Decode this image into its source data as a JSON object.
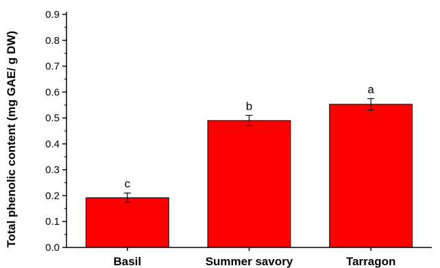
{
  "chart_data": {
    "type": "bar",
    "title": "",
    "xlabel": "",
    "ylabel": "Total phenolic content (mg GAE/ g DW)",
    "ylim": [
      0,
      0.9
    ],
    "y_ticks": [
      0.0,
      0.1,
      0.2,
      0.3,
      0.4,
      0.5,
      0.6,
      0.7,
      0.8,
      0.9
    ],
    "y_tick_labels": [
      "0.0",
      "0.1",
      "0.2",
      "0.3",
      "0.4",
      "0.5",
      "0.6",
      "0.7",
      "0.8",
      "0.9"
    ],
    "grid": false,
    "categories": [
      "Basil",
      "Summer savory",
      "Tarragon"
    ],
    "values": [
      0.192,
      0.49,
      0.553
    ],
    "errors": [
      0.018,
      0.02,
      0.022
    ],
    "significance_letters": [
      "c",
      "b",
      "a"
    ],
    "bar_color": "#ff0000"
  }
}
